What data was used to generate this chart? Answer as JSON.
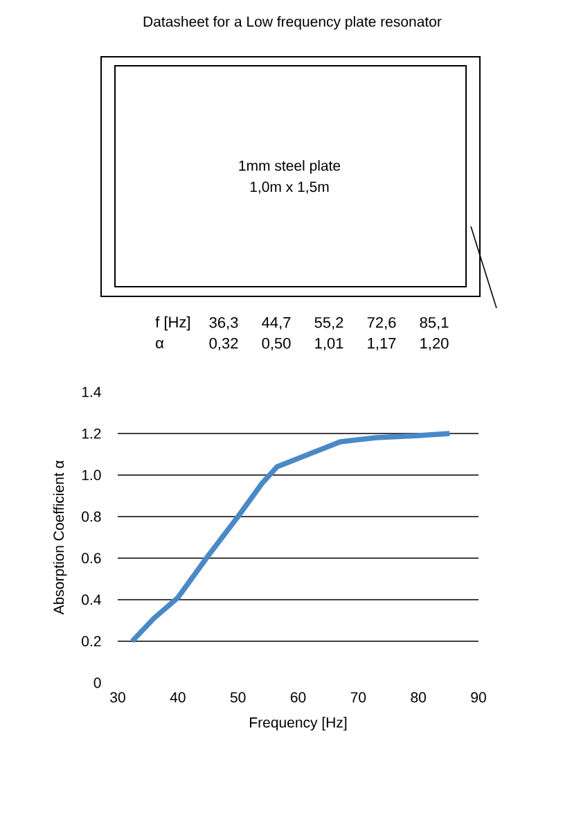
{
  "chart_data": {
    "type": "line",
    "title": "Datasheet for a Low frequency plate resonator",
    "xlabel": "Frequency [Hz]",
    "ylabel": "Absorption Coefficient α",
    "annotations": [
      "1mm steel plate",
      "1,0m x 1,5m",
      "f [Hz]",
      "36,3",
      "44,7",
      "55,2",
      "72,6",
      "85,1",
      "α",
      "0,32",
      "0,50",
      "1,01",
      "1,17",
      "1,20"
    ],
    "x": [
      32.4,
      36,
      40,
      41.5,
      45,
      50,
      54,
      56.5,
      60,
      63.5,
      67,
      73,
      80,
      85.2
    ],
    "series": [
      {
        "color": "#4a89c8",
        "values": [
          0.2,
          0.31,
          0.41,
          0.47,
          0.61,
          0.8,
          0.96,
          1.04,
          1.08,
          1.12,
          1.16,
          1.18,
          1.19,
          1.2
        ]
      }
    ],
    "xlim": [
      30,
      90
    ],
    "xticks": [
      30,
      40,
      50,
      60,
      70,
      80,
      90
    ],
    "ylim": [
      0,
      1.4
    ],
    "yticks": [
      0,
      0.2,
      0.4,
      0.6,
      0.8,
      {
        "value": 1,
        "label": "1.0"
      },
      1.2,
      1.4
    ],
    "grid": "y",
    "line_style": "solid"
  }
}
